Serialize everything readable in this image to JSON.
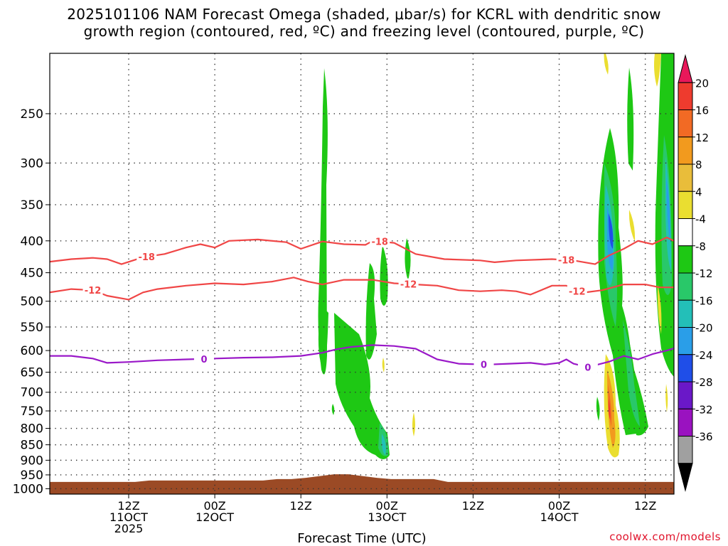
{
  "title_line1": "2025101106 NAM Forecast Omega (shaded, μbar/s) for KCRL with dendritic snow",
  "title_line2": "growth region (contoured, red, ºC) and freezing level (contoured, purple, ºC)",
  "credit": "coolwx.com/models",
  "chart_data": {
    "type": "heatmap",
    "xlabel": "Forecast Time (UTC)",
    "ylabel": "",
    "x_range_hours": [
      -5,
      82
    ],
    "x_ticks": [
      {
        "hour": 6,
        "lines": [
          "12Z",
          "11OCT",
          "2025"
        ]
      },
      {
        "hour": 18,
        "lines": [
          "00Z",
          "12OCT"
        ]
      },
      {
        "hour": 30,
        "lines": [
          "12Z"
        ]
      },
      {
        "hour": 42,
        "lines": [
          "00Z",
          "13OCT"
        ]
      },
      {
        "hour": 54,
        "lines": [
          "12Z"
        ]
      },
      {
        "hour": 66,
        "lines": [
          "00Z",
          "14OCT"
        ]
      },
      {
        "hour": 78,
        "lines": [
          "12Z"
        ]
      }
    ],
    "y_levels_hPa": [
      250,
      300,
      350,
      400,
      450,
      500,
      550,
      600,
      650,
      700,
      750,
      800,
      850,
      900,
      950,
      1000
    ],
    "y_range_hPa": [
      200,
      1020
    ],
    "grid": true,
    "colorbar": {
      "labels": [
        "20",
        "16",
        "12",
        "8",
        "4",
        "-4",
        "-8",
        "-12",
        "-16",
        "-20",
        "-24",
        "-28",
        "-32",
        "-36"
      ],
      "colors": [
        "#e8185a",
        "#ee3b2e",
        "#f26a24",
        "#f29a1e",
        "#e9bd3a",
        "#eade30",
        "#ffffff",
        "#1ec814",
        "#29c869",
        "#23bfb8",
        "#2a9ee8",
        "#1f4ee8",
        "#6a18c8",
        "#9a12c0",
        "#a0a0a0",
        "#000000"
      ]
    },
    "surface_color": "#9b4a25",
    "contours": [
      {
        "label": "-18",
        "color": "#f04646",
        "label_hours": [
          8.5,
          41,
          67
        ],
        "points": [
          [
            -5,
            432
          ],
          [
            -2,
            428
          ],
          [
            1,
            426
          ],
          [
            3,
            428
          ],
          [
            5,
            436
          ],
          [
            8,
            425
          ],
          [
            11,
            420
          ],
          [
            14,
            410
          ],
          [
            16,
            405
          ],
          [
            18,
            410
          ],
          [
            20,
            400
          ],
          [
            24,
            398
          ],
          [
            28,
            402
          ],
          [
            30,
            412
          ],
          [
            33,
            401
          ],
          [
            36,
            405
          ],
          [
            39,
            406
          ],
          [
            40,
            400
          ],
          [
            43,
            403
          ],
          [
            46,
            420
          ],
          [
            50,
            428
          ],
          [
            55,
            430
          ],
          [
            57,
            433
          ],
          [
            60,
            430
          ],
          [
            65,
            428
          ],
          [
            68,
            430
          ],
          [
            71,
            436
          ],
          [
            73,
            422
          ],
          [
            75,
            412
          ],
          [
            77,
            400
          ],
          [
            79,
            405
          ],
          [
            81,
            395
          ],
          [
            82,
            400
          ]
        ]
      },
      {
        "label": "-12",
        "color": "#f04646",
        "label_hours": [
          1,
          45,
          68.5
        ],
        "points": [
          [
            -5,
            484
          ],
          [
            -2,
            478
          ],
          [
            1,
            480
          ],
          [
            3,
            490
          ],
          [
            6,
            497
          ],
          [
            8,
            484
          ],
          [
            10,
            478
          ],
          [
            14,
            472
          ],
          [
            18,
            468
          ],
          [
            22,
            470
          ],
          [
            26,
            465
          ],
          [
            29,
            458
          ],
          [
            31,
            465
          ],
          [
            33,
            470
          ],
          [
            36,
            462
          ],
          [
            40,
            462
          ],
          [
            43,
            468
          ],
          [
            46,
            470
          ],
          [
            49,
            472
          ],
          [
            52,
            480
          ],
          [
            55,
            482
          ],
          [
            58,
            480
          ],
          [
            60,
            482
          ],
          [
            62,
            488
          ],
          [
            65,
            472
          ],
          [
            67,
            472
          ],
          [
            69,
            485
          ],
          [
            72,
            480
          ],
          [
            75,
            470
          ],
          [
            78,
            470
          ],
          [
            80,
            475
          ],
          [
            82,
            475
          ]
        ]
      },
      {
        "label": "0",
        "color": "#9a18c8",
        "label_hours": [
          16.5,
          55.5,
          70
        ],
        "points": [
          [
            -5,
            612
          ],
          [
            -2,
            612
          ],
          [
            1,
            618
          ],
          [
            3,
            628
          ],
          [
            6,
            626
          ],
          [
            10,
            622
          ],
          [
            14,
            620
          ],
          [
            18,
            618
          ],
          [
            22,
            616
          ],
          [
            26,
            615
          ],
          [
            30,
            612
          ],
          [
            33,
            605
          ],
          [
            35,
            597
          ],
          [
            37,
            592
          ],
          [
            40,
            588
          ],
          [
            43,
            590
          ],
          [
            46,
            596
          ],
          [
            49,
            620
          ],
          [
            52,
            630
          ],
          [
            56,
            632
          ],
          [
            59,
            630
          ],
          [
            62,
            628
          ],
          [
            64,
            632
          ],
          [
            66,
            628
          ],
          [
            67,
            620
          ],
          [
            68,
            630
          ],
          [
            70,
            638
          ],
          [
            73,
            625
          ],
          [
            75,
            612
          ],
          [
            77,
            620
          ],
          [
            79,
            608
          ],
          [
            81,
            600
          ],
          [
            82,
            595
          ]
        ]
      }
    ]
  }
}
